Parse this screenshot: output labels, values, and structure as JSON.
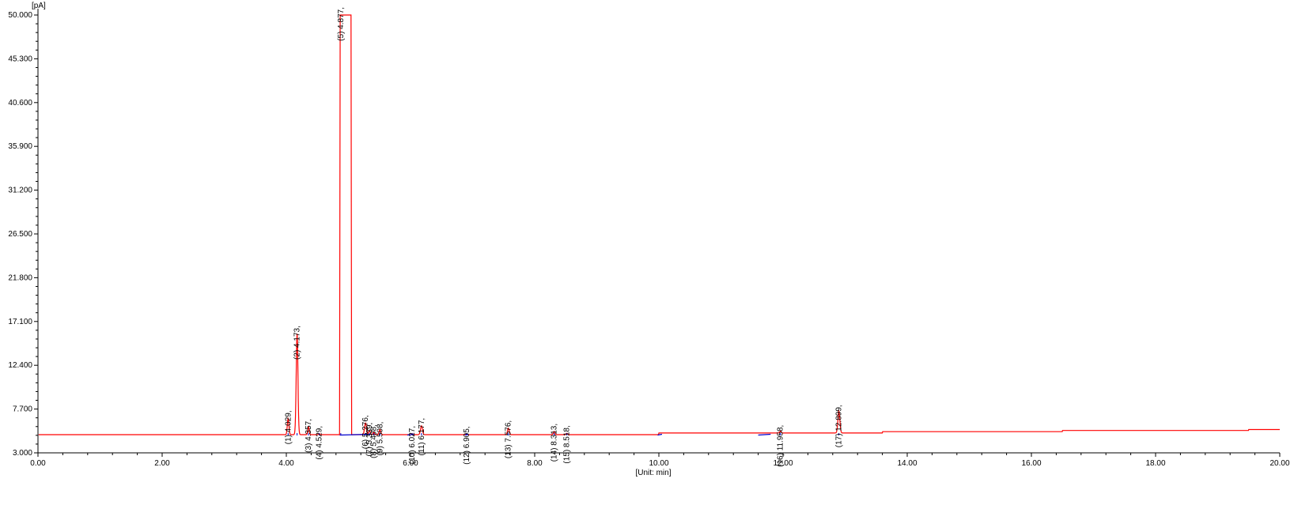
{
  "chart_data": {
    "type": "line",
    "ylabel": "[pA]",
    "xlabel": "[Unit: min]",
    "xlim": [
      0,
      20
    ],
    "ylim": [
      3.0,
      50.0
    ],
    "x_ticks": [
      "0.00",
      "2.00",
      "4.00",
      "6.00",
      "8.00",
      "10.00",
      "12.00",
      "14.00",
      "16.00",
      "18.00",
      "20.00"
    ],
    "y_ticks": [
      "3.000",
      "7.700",
      "12.400",
      "17.100",
      "21.800",
      "26.500",
      "31.200",
      "35.900",
      "40.600",
      "45.300",
      "50.000"
    ],
    "colors": {
      "signal": "#ff0000",
      "integration": "#0000cc",
      "axis": "#000000"
    },
    "baseline": 4.95,
    "peaks": [
      {
        "label": "(1) 4.029,",
        "rt": 4.029,
        "height": 6.7,
        "width": 0.02
      },
      {
        "label": "(2) 4.173,",
        "rt": 4.173,
        "height": 15.8,
        "width": 0.022
      },
      {
        "label": "(3) 4.357,",
        "rt": 4.357,
        "height": 5.8,
        "width": 0.018
      },
      {
        "label": "(4) 4.529,",
        "rt": 4.529,
        "height": 5.05,
        "width": 0.02
      },
      {
        "label": "(5) 4.877,",
        "rt": 4.877,
        "height": 50.0,
        "width": 0.09
      },
      {
        "label": "(6) 5.276,",
        "rt": 5.276,
        "height": 6.2,
        "width": 0.025
      },
      {
        "label": "(7) 5.339,",
        "rt": 5.339,
        "height": 5.4,
        "width": 0.02
      },
      {
        "label": "(8) 5.408,",
        "rt": 5.408,
        "height": 5.2,
        "width": 0.02
      },
      {
        "label": "(9) 5.508,",
        "rt": 5.508,
        "height": 5.5,
        "width": 0.02
      },
      {
        "label": "(10) 6.027,",
        "rt": 6.027,
        "height": 5.05,
        "width": 0.02
      },
      {
        "label": "(11) 6.177,",
        "rt": 6.177,
        "height": 5.9,
        "width": 0.025
      },
      {
        "label": "(12) 6.905,",
        "rt": 6.905,
        "height": 5.0,
        "width": 0.02
      },
      {
        "label": "(13) 7.576,",
        "rt": 7.576,
        "height": 5.65,
        "width": 0.022
      },
      {
        "label": "(14) 8.313,",
        "rt": 8.313,
        "height": 5.3,
        "width": 0.02
      },
      {
        "label": "(15) 8.518,",
        "rt": 8.518,
        "height": 5.1,
        "width": 0.02
      },
      {
        "label": "(16) 11.958,",
        "rt": 11.958,
        "height": 5.15,
        "width": 0.02
      },
      {
        "label": "(17) 12.899,",
        "rt": 12.899,
        "height": 7.3,
        "width": 0.025
      }
    ]
  }
}
